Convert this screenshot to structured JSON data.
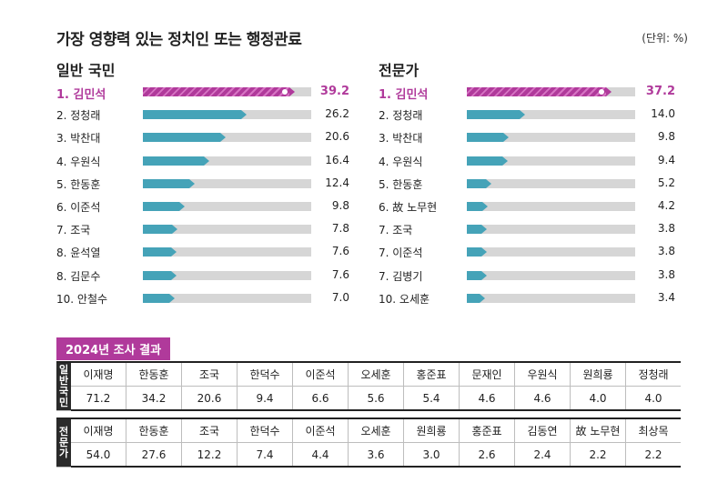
{
  "title": "가장 영향력 있는 정치인 또는 행정관료",
  "unit": "(단위: %)",
  "colors": {
    "highlight": "#b03a9b",
    "bar": "#45a3b8",
    "track": "#d6d6d6"
  },
  "chart_data": [
    {
      "type": "bar",
      "title": "일반 국민",
      "xlim": [
        0,
        45
      ],
      "categories": [
        "1. 김민석",
        "2. 정청래",
        "3. 박찬대",
        "4. 우원식",
        "5. 한동훈",
        "6. 이준석",
        "7. 조국",
        "8. 윤석열",
        "8. 김문수",
        "10. 안철수"
      ],
      "values": [
        39.2,
        26.2,
        20.6,
        16.4,
        12.4,
        9.8,
        7.8,
        7.6,
        7.6,
        7.0
      ],
      "value_labels": [
        "39.2",
        "26.2",
        "20.6",
        "16.4",
        "12.4",
        "9.8",
        "7.8",
        "7.6",
        "7.6",
        "7.0"
      ]
    },
    {
      "type": "bar",
      "title": "전문가",
      "xlim": [
        0,
        45
      ],
      "categories": [
        "1. 김민석",
        "2. 정청래",
        "3. 박찬대",
        "4. 우원식",
        "5. 한동훈",
        "6. 故 노무현",
        "7. 조국",
        "7. 이준석",
        "7. 김병기",
        "10. 오세훈"
      ],
      "values": [
        37.2,
        14.0,
        9.8,
        9.4,
        5.2,
        4.2,
        3.8,
        3.8,
        3.8,
        3.4
      ],
      "value_labels": [
        "37.2",
        "14.0",
        "9.8",
        "9.4",
        "5.2",
        "4.2",
        "3.8",
        "3.8",
        "3.8",
        "3.4"
      ]
    },
    {
      "type": "table",
      "title": "2024년 조사 결과",
      "groups": [
        {
          "label": "일반국민",
          "names": [
            "이재명",
            "한동훈",
            "조국",
            "한덕수",
            "이준석",
            "오세훈",
            "홍준표",
            "문재인",
            "우원식",
            "원희룡",
            "정청래"
          ],
          "values": [
            "71.2",
            "34.2",
            "20.6",
            "9.4",
            "6.6",
            "5.6",
            "5.4",
            "4.6",
            "4.6",
            "4.0",
            "4.0"
          ]
        },
        {
          "label": "전문가",
          "names": [
            "이재명",
            "한동훈",
            "조국",
            "한덕수",
            "이준석",
            "오세훈",
            "원희룡",
            "홍준표",
            "김동연",
            "故 노무현",
            "최상목"
          ],
          "values": [
            "54.0",
            "27.6",
            "12.2",
            "7.4",
            "4.4",
            "3.6",
            "3.0",
            "2.6",
            "2.4",
            "2.2",
            "2.2"
          ]
        }
      ]
    }
  ]
}
